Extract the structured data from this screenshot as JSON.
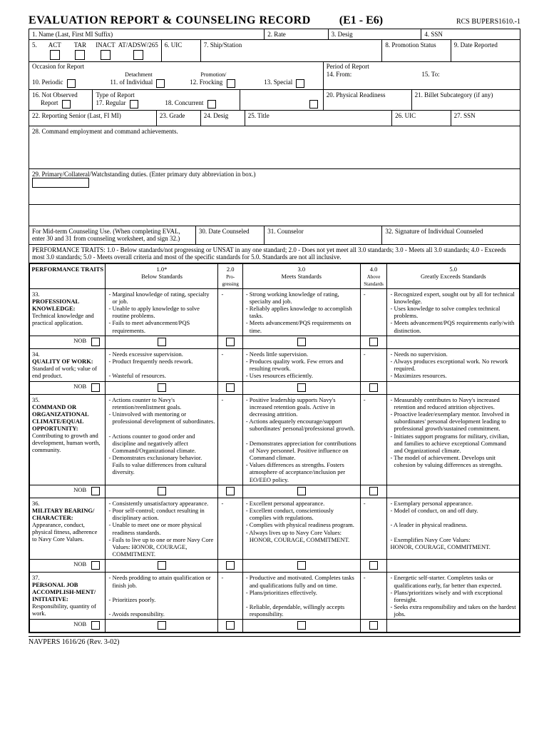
{
  "title": "EVALUATION REPORT & COUNSELING RECORD",
  "range": "(E1 - E6)",
  "rcs": "RCS BUPERS1610.-1",
  "fields": {
    "f1": "1.  Name (Last, First  MI  Suffix)",
    "f2": "2.  Rate",
    "f3": "3.  Desig",
    "f4": "4.  SSN",
    "f5": "5.",
    "act": "ACT",
    "tar": "TAR",
    "inact": "INACT",
    "atadsw": "AT/ADSW/265",
    "f6": "6. UIC",
    "f7": "7.  Ship/Station",
    "f8": "8.  Promotion Status",
    "f9": "9.  Date Reported",
    "occasion": "Occasion for Report",
    "f10": "10.  Periodic",
    "f11a": "Detachment",
    "f11b": "11.  of Individual",
    "f12a": "Promotion/",
    "f12b": "12.  Frocking",
    "f13": "13.  Special",
    "period": "Period of Report",
    "f14": "14.  From:",
    "f15": "15.  To:",
    "f16a": "16.  Not Observed",
    "f16b": "Report",
    "f17a": "Type of Report",
    "f17b": "17.  Regular",
    "f18": "18.  Concurrent",
    "f20": "20.  Physical Readiness",
    "f21": "21.  Billet Subcategory (if any)",
    "f22": "22.  Reporting Senior (Last, FI  MI)",
    "f23": "23.  Grade",
    "f24": "24.  Desig",
    "f25": "25.  Title",
    "f26": "26.  UIC",
    "f27": "27.  SSN",
    "f28": "28.  Command employment and command achievements.",
    "f29": "29.  Primary/Collateral/Watchstanding duties.   (Enter primary duty abbreviation in box.)",
    "midterm": "For Mid-term Counseling Use.  (When completing EVAL, enter 30 and 31 from counseling worksheet, and sign 32.)",
    "f30": "30.  Date Counseled",
    "f31": "31. Counselor",
    "f32": "32.  Signature of Individual Counseled"
  },
  "perf_intro": "PERFORMANCE TRAITS:   1.0 - Below standards/not progressing or UNSAT in any one standard;   2.0 - Does not yet meet all 3.0 standards;   3.0 - Meets all 3.0 standards;   4.0 - Exceeds most 3.0 standards;   5.0 - Meets overall criteria and most of the specific standards for 5.0.    Standards are not all inclusive.",
  "cols": {
    "traits": "PERFORMANCE TRAITS",
    "c1a": "1.0*",
    "c1b": "Below Standards",
    "c2a": "2.0",
    "c2b": "Pro-gressing",
    "c3a": "3.0",
    "c3b": "Meets Standards",
    "c4a": "4.0",
    "c4b": "Above Standards",
    "c5a": "5.0",
    "c5b": "Greatly Exceeds Standards"
  },
  "nob": "NOB",
  "traits": [
    {
      "num": "33.",
      "name": "PROFESSIONAL KNOWLEDGE:",
      "desc": "Technical knowledge and practical application.",
      "below": [
        "- Marginal knowledge of rating, specialty or job.",
        "- Unable to apply knowledge to solve routine problems.",
        "- Fails to meet advancement/PQS requirements."
      ],
      "meets": [
        "- Strong working knowledge of rating, specialty and job.",
        "- Reliably applies knowledge to accomplish tasks.",
        "- Meets advancement/PQS requirements on time."
      ],
      "exceeds": [
        "- Recognized expert, sought out by all for technical knowledge.",
        "- Uses knowledge to solve complex technical problems.",
        "- Meets advancement/PQS requirements early/with distinction."
      ]
    },
    {
      "num": "34.",
      "name": "QUALITY OF WORK:",
      "desc": "Standard of work; value of end product.",
      "below": [
        "- Needs excessive supervision.",
        "- Product frequently needs rework.",
        "",
        "- Wasteful of resources."
      ],
      "meets": [
        "- Needs little supervision.",
        "- Produces quality work.  Few errors and resulting rework.",
        "- Uses resources efficiently."
      ],
      "exceeds": [
        "- Needs no supervision.",
        "- Always produces exceptional work.  No rework required.",
        "- Maximizes resources."
      ]
    },
    {
      "num": "35.",
      "name": "COMMAND OR ORGANIZATIONAL CLIMATE/EQUAL OPPORTUNITY:",
      "desc": "Contributing to growth and development, human worth, community.",
      "below": [
        "- Actions counter to Navy's retention/reenlistment goals.",
        "- Uninvolved with mentoring or professional development of subordinates.",
        "",
        "- Actions counter to good order and discipline and negatively affect  Command/Organizational climate.",
        "- Demonstrates exclusionary behavior. Fails to value differences from cultural diversity."
      ],
      "meets": [
        "- Positive leadership supports Navy's increased retention goals.  Active in decreasing attrition.",
        "- Actions adequately encourage/support subordinates' personal/professional growth.",
        "",
        "- Demonstrates appreciation for contributions of Navy personnel.  Positive influence on Command climate.",
        "- Values differences as strengths. Fosters atmosphere of acceptance/inclusion per EO/EEO policy."
      ],
      "exceeds": [
        "- Measurably contributes to Navy's increased retention and reduced attrition objectives.",
        "- Proactive leader/exemplary mentor.  Involved in subordinates' personal development leading to professional growth/sustained commitment.",
        "- Initiates support programs for military, civilian, and families to achieve exceptional Command and Organizational climate.",
        "- The model of achievement. Develops unit cohesion by valuing differences as strengths."
      ]
    },
    {
      "num": "36.",
      "name": "MILITARY BEARING/ CHARACTER:",
      "desc": "Appearance, conduct, physical fitness, adherence to Navy Core Values.",
      "below": [
        "- Consistently unsatisfactory appearance.",
        "- Poor self-control; conduct resulting in disciplinary action.",
        "- Unable to meet one or more physical readiness standards.",
        "- Fails to live up to one or more Navy Core Values: HONOR, COURAGE, COMMITMENT."
      ],
      "meets": [
        "- Excellent personal appearance.",
        "- Excellent conduct, conscientiously complies with regulations.",
        "- Complies with physical readiness program.",
        "- Always lives up to Navy Core Values: HONOR, COURAGE, COMMITMENT."
      ],
      "exceeds": [
        "- Exemplary personal appearance.",
        "- Model of conduct, on and off duty.",
        "",
        "- A leader in physical readiness.",
        "",
        "- Exemplifies Navy Core Values:",
        "   HONOR, COURAGE, COMMITMENT."
      ]
    },
    {
      "num": "37.",
      "name": "PERSONAL JOB ACCOMPLISH-MENT/ INITIATIVE:",
      "desc": "Responsibility, quantity of work.",
      "below": [
        "- Needs prodding to attain qualification or finish job.",
        "",
        "- Prioritizes poorly.",
        "",
        "- Avoids responsibility."
      ],
      "meets": [
        "- Productive and motivated.  Completes tasks and qualifications fully and on time.",
        "- Plans/prioritizes effectively.",
        "",
        "- Reliable, dependable, willingly accepts responsibility."
      ],
      "exceeds": [
        "- Energetic self-starter.  Completes tasks or qualifications early, far better than expected.",
        "- Plans/prioritizes wisely and with exceptional foresight.",
        "- Seeks extra responsibility and takes on the hardest jobs."
      ]
    }
  ],
  "footer": "NAVPERS 1616/26 (Rev. 3-02)"
}
